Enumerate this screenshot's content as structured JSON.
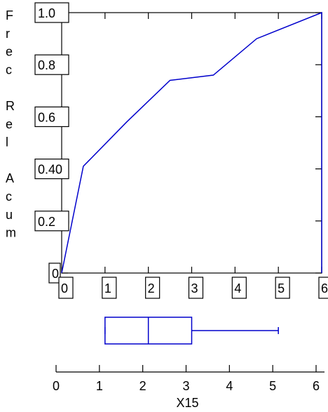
{
  "chart_data": {
    "type": "line",
    "ylabel_letters": [
      "F",
      "r",
      "e",
      "c",
      " ",
      "R",
      "e",
      "l",
      " ",
      "A",
      "c",
      "u",
      "m"
    ],
    "xlabel": "X15",
    "xlim": [
      0,
      6
    ],
    "ylim": [
      0,
      1.0
    ],
    "x_ticks": [
      "0",
      "1",
      "2",
      "3",
      "4",
      "5",
      "6"
    ],
    "y_ticks": [
      {
        "value": 0,
        "label": "0"
      },
      {
        "value": 0.2,
        "label": "0.2"
      },
      {
        "value": 0.4,
        "label": "0.40"
      },
      {
        "value": 0.6,
        "label": "0.6"
      },
      {
        "value": 0.8,
        "label": "0.8"
      },
      {
        "value": 1.0,
        "label": "1.0"
      }
    ],
    "series": [
      {
        "color": "#0000cc",
        "x": [
          0,
          0.5,
          1.5,
          2.5,
          3.5,
          4.5,
          6,
          6
        ],
        "y": [
          0,
          0.41,
          0.58,
          0.74,
          0.76,
          0.9,
          1.0,
          0
        ]
      }
    ],
    "boxplot": {
      "color": "#0000cc",
      "min": 1,
      "q1": 1,
      "median": 2,
      "q3": 3,
      "max": 5
    }
  }
}
